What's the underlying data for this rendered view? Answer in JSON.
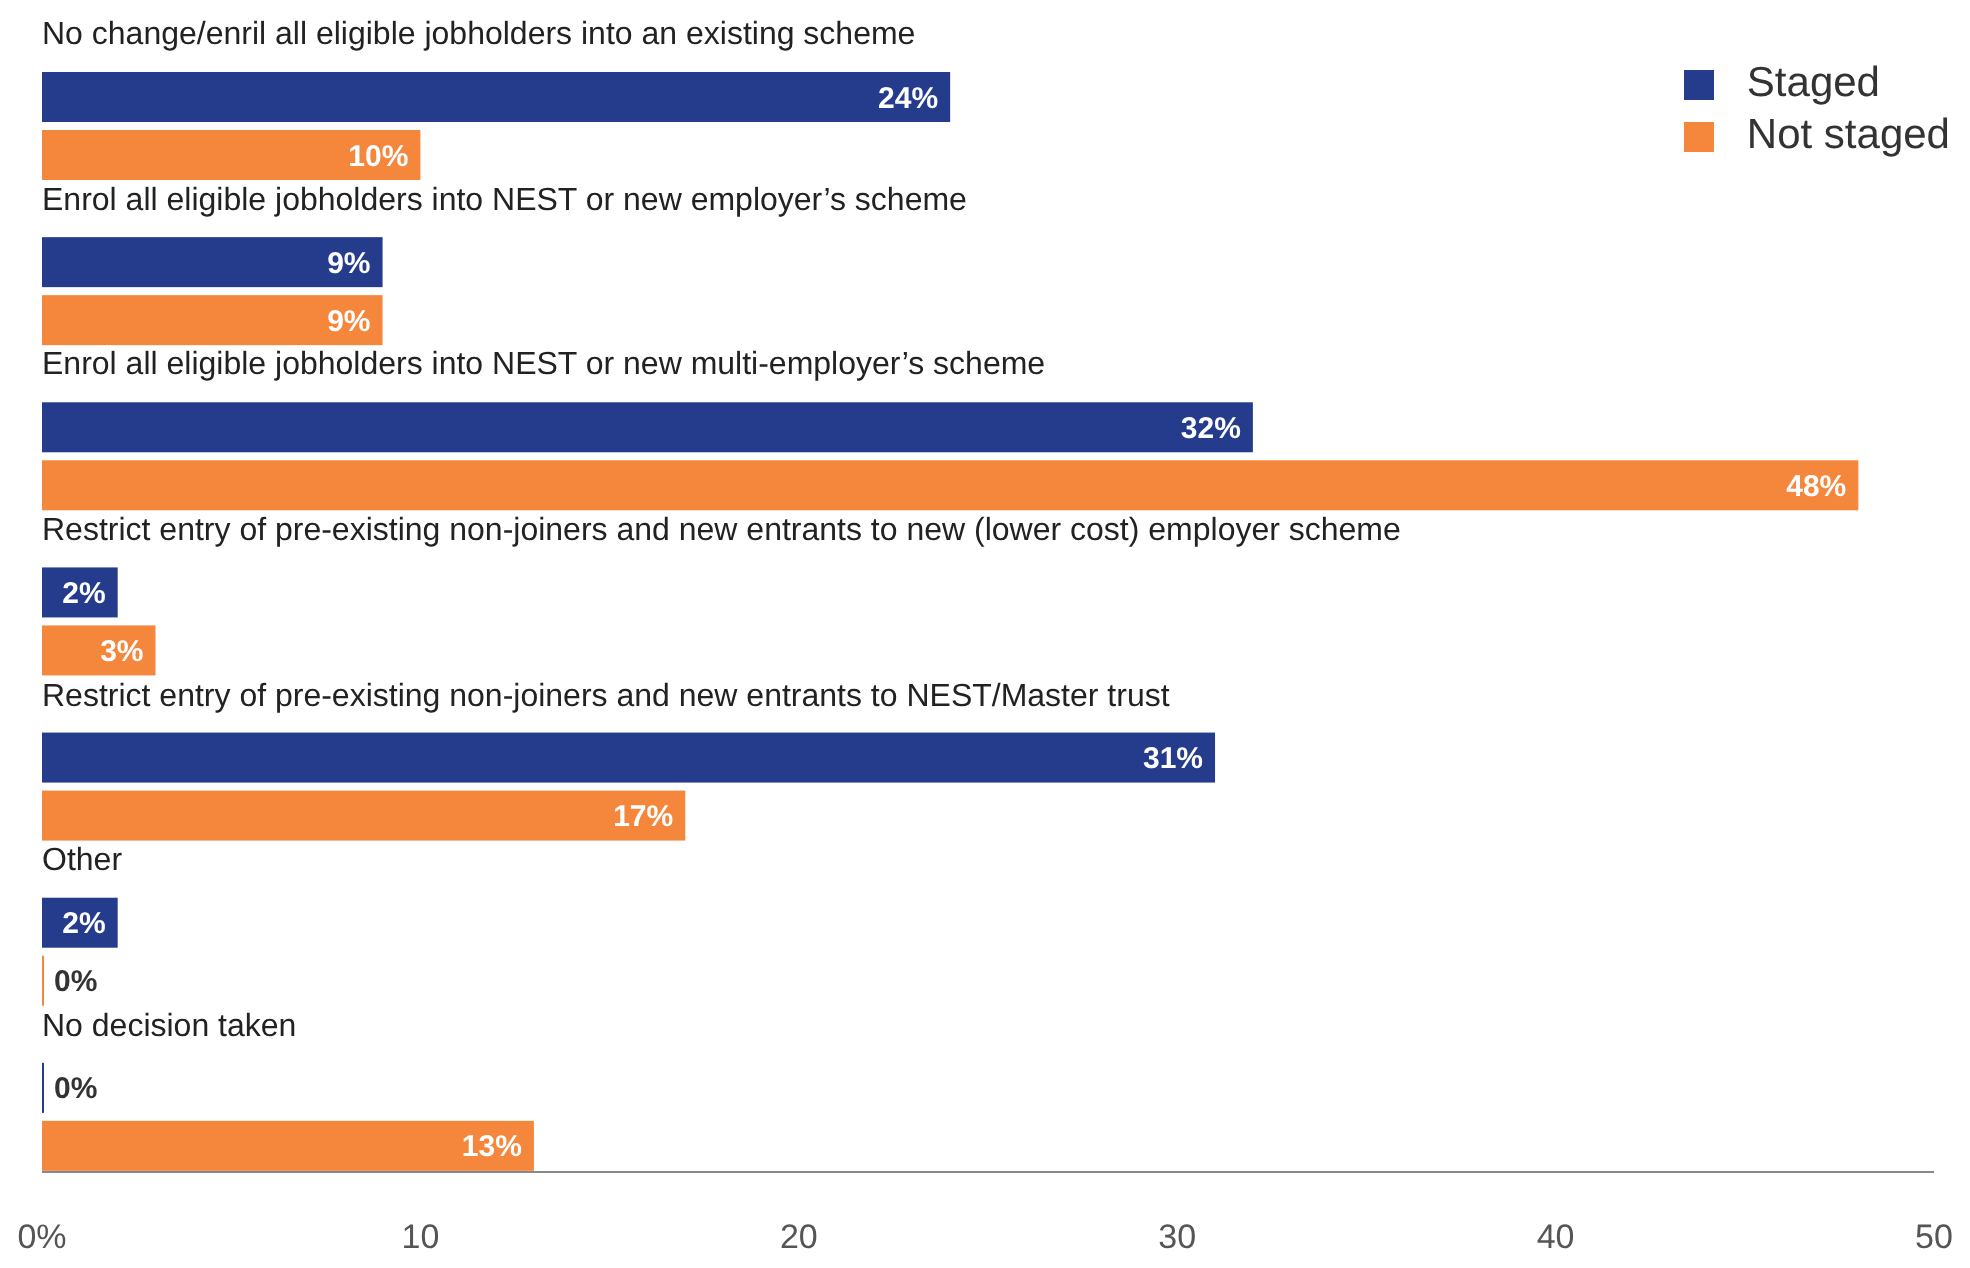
{
  "chart_data": {
    "type": "bar",
    "orientation": "horizontal",
    "categories": [
      "No change/enril all eligible jobholders into an existing scheme",
      "Enrol all eligible jobholders into NEST or new employer’s scheme",
      "Enrol all eligible jobholders into NEST or new multi-employer’s scheme",
      "Restrict entry of pre-existing non-joiners and new entrants to new (lower cost) employer scheme",
      "Restrict entry of pre-existing non-joiners and new entrants to NEST/Master trust",
      "Other",
      "No decision taken"
    ],
    "series": [
      {
        "name": "Staged",
        "color": "#253c8c",
        "values": [
          24,
          9,
          32,
          2,
          31,
          2,
          0
        ],
        "value_labels": [
          "24%",
          "9%",
          "32%",
          "2%",
          "31%",
          "2%",
          "0%"
        ]
      },
      {
        "name": "Not staged",
        "color": "#f5873c",
        "values": [
          10,
          9,
          48,
          3,
          17,
          0,
          13
        ],
        "value_labels": [
          "10%",
          "9%",
          "48%",
          "3%",
          "17%",
          "0%",
          "13%"
        ]
      }
    ],
    "xlim": [
      0,
      50
    ],
    "xticks": [
      {
        "value": 0,
        "label": "0%"
      },
      10,
      20,
      30,
      40,
      50
    ],
    "grid": false,
    "legend": "top right"
  }
}
